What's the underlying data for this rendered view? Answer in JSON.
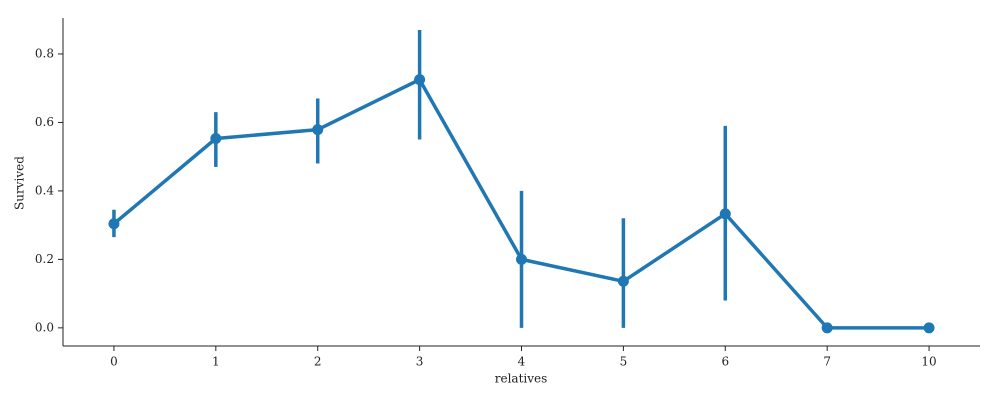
{
  "chart_data": {
    "type": "pointplot",
    "x_label": "relatives",
    "y_label": "Survived",
    "categories": [
      "0",
      "1",
      "2",
      "3",
      "4",
      "5",
      "6",
      "7",
      "10"
    ],
    "series": [
      {
        "color": "#1f77b4",
        "values": [
          0.304,
          0.553,
          0.579,
          0.725,
          0.2,
          0.136,
          0.333,
          0,
          0
        ],
        "ci_lower": [
          0.265,
          0.47,
          0.48,
          0.55,
          0,
          0,
          0.08,
          0,
          0
        ],
        "ci_upper": [
          0.345,
          0.63,
          0.67,
          0.87,
          0.4,
          0.32,
          0.59,
          0,
          0
        ]
      }
    ],
    "ylim": [
      -0.053,
      0.905
    ],
    "yticks": [
      {
        "value": 0,
        "label": "0.0"
      },
      0.2,
      0.4,
      0.6,
      0.8
    ]
  }
}
